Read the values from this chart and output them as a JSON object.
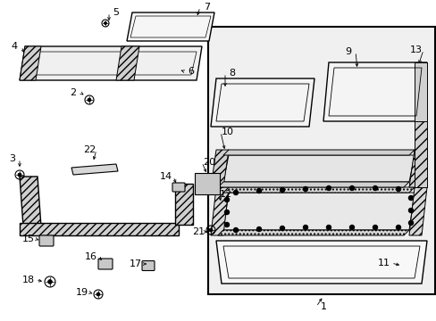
{
  "background_color": "#ffffff",
  "line_color": "#000000",
  "text_color": "#000000",
  "panel_fill": "#f0f0f0",
  "box_fill": "#ebebeb",
  "figsize": [
    4.89,
    3.6
  ],
  "dpi": 100
}
